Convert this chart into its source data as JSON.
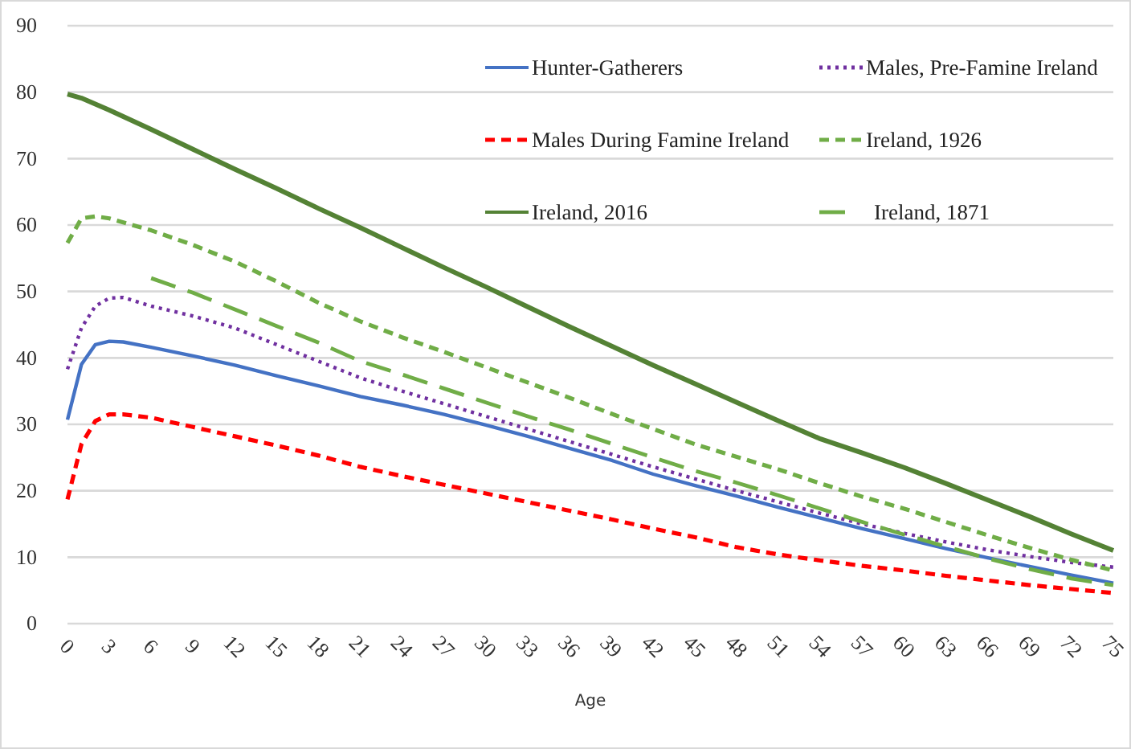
{
  "chart_data": {
    "type": "line",
    "xlabel": "Age",
    "xlim": [
      0,
      75
    ],
    "xticks": [
      0,
      3,
      6,
      9,
      12,
      15,
      18,
      21,
      24,
      27,
      30,
      33,
      36,
      39,
      42,
      45,
      48,
      51,
      54,
      57,
      60,
      63,
      66,
      69,
      72,
      75
    ],
    "ylim": [
      0,
      90
    ],
    "yticks": [
      0,
      10,
      20,
      30,
      40,
      50,
      60,
      70,
      80,
      90
    ],
    "grid": "y",
    "legend": "top right",
    "marker": "none",
    "series": [
      {
        "name": "Hunter-Gatherers",
        "color": "#4472c4",
        "line_style": "solid",
        "x": [
          0,
          1,
          2,
          3,
          4,
          6,
          9,
          12,
          15,
          18,
          21,
          24,
          27,
          30,
          33,
          36,
          39,
          42,
          45,
          48,
          51,
          54,
          57,
          60,
          63,
          66,
          69,
          72,
          75
        ],
        "values": [
          30.7,
          39,
          42,
          42.5,
          42.4,
          41.6,
          40.3,
          38.9,
          37.3,
          35.8,
          34.2,
          32.9,
          31.5,
          29.9,
          28.2,
          26.4,
          24.6,
          22.5,
          20.8,
          19.2,
          17.5,
          15.9,
          14.3,
          12.8,
          11.3,
          9.9,
          8.6,
          7.3,
          6.1
        ]
      },
      {
        "name": "Males, Pre-Famine Ireland",
        "color": "#7030a0",
        "line_style": "dotted",
        "x": [
          0,
          1,
          2,
          3,
          4,
          6,
          9,
          12,
          15,
          18,
          21,
          24,
          27,
          30,
          33,
          36,
          39,
          42,
          45,
          48,
          51,
          54,
          57,
          60,
          63,
          66,
          69,
          72,
          75
        ],
        "values": [
          38.3,
          44.5,
          47.8,
          49,
          49.1,
          47.8,
          46.3,
          44.5,
          42,
          39.5,
          37,
          35,
          33.1,
          31.2,
          29.3,
          27.4,
          25.5,
          23.6,
          21.8,
          20,
          18.3,
          16.6,
          15,
          13.6,
          12.3,
          11.1,
          10.1,
          9.2,
          8.5
        ]
      },
      {
        "name": "Males During Famine Ireland",
        "color": "#ff0000",
        "line_style": "dashed",
        "x": [
          0,
          1,
          2,
          3,
          4,
          6,
          9,
          12,
          15,
          18,
          21,
          24,
          27,
          30,
          33,
          36,
          39,
          42,
          45,
          48,
          51,
          54,
          57,
          60,
          63,
          66,
          69,
          72,
          75
        ],
        "values": [
          18.7,
          27,
          30.5,
          31.5,
          31.5,
          31,
          29.6,
          28.2,
          26.8,
          25.3,
          23.6,
          22.2,
          20.9,
          19.6,
          18.3,
          17,
          15.7,
          14.3,
          13,
          11.5,
          10.4,
          9.5,
          8.7,
          8,
          7.2,
          6.5,
          5.8,
          5.2,
          4.6
        ]
      },
      {
        "name": "Ireland, 1926",
        "color": "#70ad47",
        "line_style": "dashed",
        "x": [
          0,
          1,
          2,
          3,
          6,
          9,
          12,
          15,
          18,
          21,
          24,
          27,
          30,
          33,
          36,
          39,
          42,
          45,
          48,
          51,
          54,
          57,
          60,
          63,
          66,
          69,
          72,
          75
        ],
        "values": [
          57.3,
          61,
          61.3,
          61,
          59.2,
          57,
          54.5,
          51.5,
          48.3,
          45.5,
          43.1,
          40.9,
          38.6,
          36.3,
          34,
          31.6,
          29.3,
          27,
          25.1,
          23.2,
          21.1,
          19.1,
          17.3,
          15.3,
          13.3,
          11.4,
          9.6,
          8
        ]
      },
      {
        "name": "Ireland, 2016",
        "color": "#548235",
        "line_style": "solid",
        "x": [
          0,
          1,
          3,
          6,
          9,
          12,
          15,
          18,
          21,
          24,
          27,
          30,
          33,
          36,
          39,
          42,
          45,
          48,
          51,
          54,
          57,
          60,
          63,
          66,
          69,
          72,
          75
        ],
        "values": [
          79.7,
          79.1,
          77.3,
          74.4,
          71.4,
          68.4,
          65.5,
          62.5,
          59.6,
          56.6,
          53.6,
          50.7,
          47.7,
          44.7,
          41.8,
          38.9,
          36.1,
          33.3,
          30.5,
          27.8,
          25.7,
          23.5,
          21.1,
          18.6,
          16.1,
          13.5,
          11
        ]
      },
      {
        "name": "Ireland, 1871",
        "color": "#70ad47",
        "line_style": "longdash",
        "x": [
          6,
          9,
          12,
          15,
          18,
          21,
          24,
          27,
          30,
          33,
          36,
          39,
          42,
          45,
          48,
          51,
          54,
          57,
          60,
          63,
          66,
          69,
          72,
          75
        ],
        "values": [
          52,
          49.8,
          47.3,
          44.8,
          42.3,
          39.5,
          37.5,
          35.4,
          33.3,
          31.2,
          29.2,
          27.1,
          25,
          23,
          21.2,
          19.3,
          17.3,
          15.3,
          13.4,
          11.6,
          9.8,
          8.2,
          6.8,
          5.8
        ]
      }
    ]
  }
}
